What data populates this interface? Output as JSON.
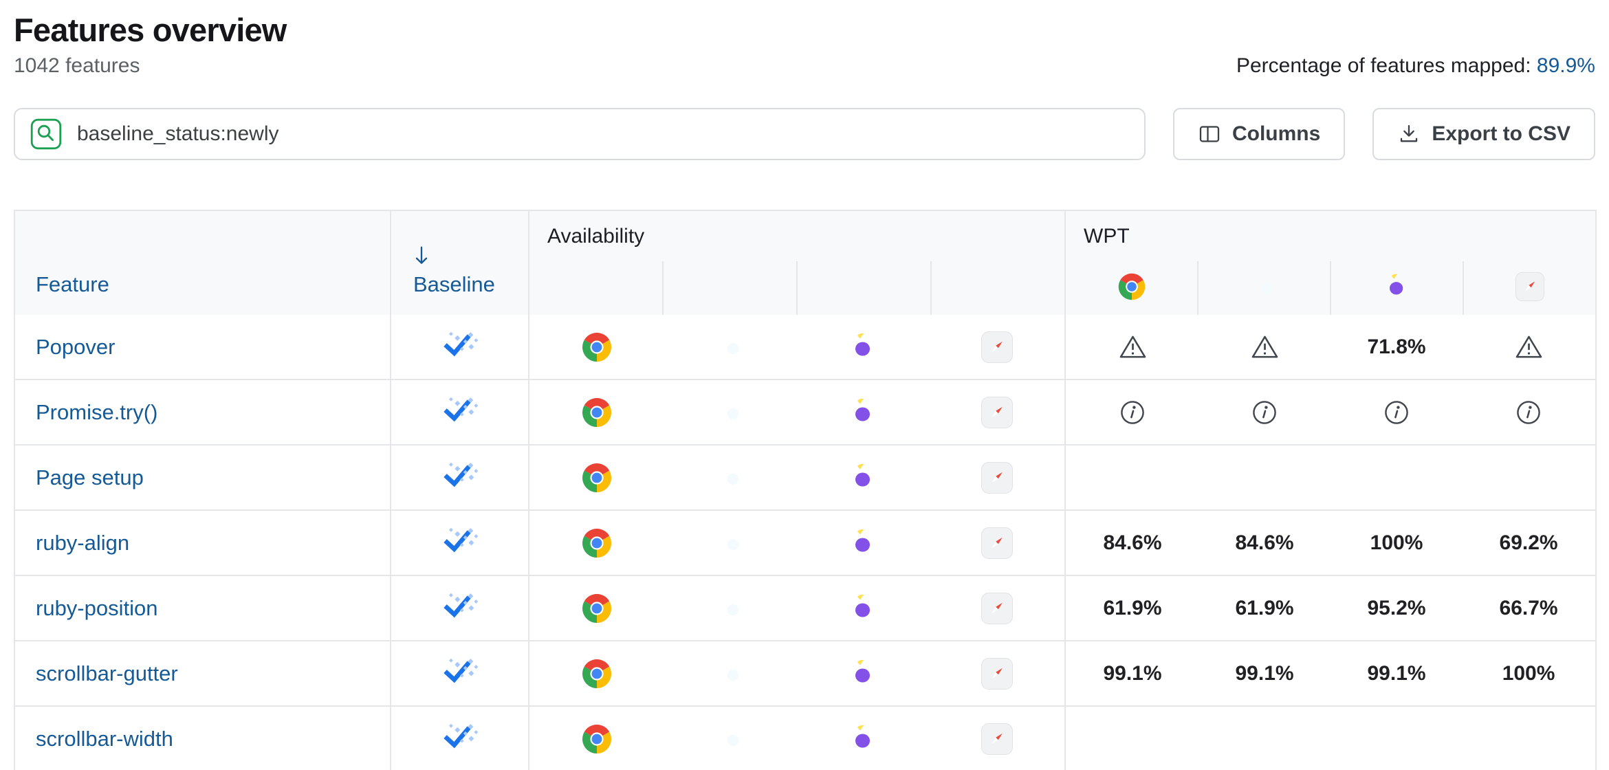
{
  "header": {
    "title": "Features overview",
    "subtitle": "1042 features",
    "mapped_label": "Percentage of features mapped:",
    "mapped_value": "89.9%"
  },
  "toolbar": {
    "search_value": "baseline_status:newly",
    "search_icon": "search-icon",
    "columns_label": "Columns",
    "columns_icon": "columns-icon",
    "export_label": "Export to CSV",
    "export_icon": "download-icon"
  },
  "table": {
    "columns": {
      "feature_label": "Feature",
      "baseline_label": "Baseline",
      "baseline_sort_icon": "arrow-down-icon",
      "baseline_sort": "descending",
      "availability_label": "Availability",
      "wpt_label": "WPT",
      "wpt_browsers": [
        "chrome",
        "edge",
        "firefox",
        "safari"
      ]
    },
    "rows": [
      {
        "feature": "Popover",
        "baseline": "newly-available",
        "availability": [
          "chrome",
          "edge",
          "firefox",
          "safari"
        ],
        "wpt": [
          {
            "icon": "warning"
          },
          {
            "icon": "warning"
          },
          {
            "value": "71.8%"
          },
          {
            "icon": "warning"
          }
        ]
      },
      {
        "feature": "Promise.try()",
        "baseline": "newly-available",
        "availability": [
          "chrome",
          "edge",
          "firefox",
          "safari"
        ],
        "wpt": [
          {
            "icon": "info"
          },
          {
            "icon": "info"
          },
          {
            "icon": "info"
          },
          {
            "icon": "info"
          }
        ]
      },
      {
        "feature": "Page setup",
        "baseline": "newly-available",
        "availability": [
          "chrome",
          "edge",
          "firefox",
          "safari"
        ],
        "wpt": [
          {},
          {},
          {},
          {}
        ]
      },
      {
        "feature": "ruby-align",
        "baseline": "newly-available",
        "availability": [
          "chrome",
          "edge",
          "firefox",
          "safari"
        ],
        "wpt": [
          {
            "value": "84.6%"
          },
          {
            "value": "84.6%"
          },
          {
            "value": "100%"
          },
          {
            "value": "69.2%"
          }
        ]
      },
      {
        "feature": "ruby-position",
        "baseline": "newly-available",
        "availability": [
          "chrome",
          "edge",
          "firefox",
          "safari"
        ],
        "wpt": [
          {
            "value": "61.9%"
          },
          {
            "value": "61.9%"
          },
          {
            "value": "95.2%"
          },
          {
            "value": "66.7%"
          }
        ]
      },
      {
        "feature": "scrollbar-gutter",
        "baseline": "newly-available",
        "availability": [
          "chrome",
          "edge",
          "firefox",
          "safari"
        ],
        "wpt": [
          {
            "value": "99.1%"
          },
          {
            "value": "99.1%"
          },
          {
            "value": "99.1%"
          },
          {
            "value": "100%"
          }
        ]
      },
      {
        "feature": "scrollbar-width",
        "baseline": "newly-available",
        "availability": [
          "chrome",
          "edge",
          "firefox",
          "safari"
        ],
        "wpt": [
          {},
          {},
          {},
          {}
        ]
      }
    ]
  },
  "colors": {
    "link_blue": "#155a96",
    "accent_green": "#1ba052",
    "baseline_check_blue": "#1a73e8",
    "baseline_sparkle_blue": "#a6c8fa",
    "icon_gray": "#40454d",
    "header_background": "#f8f9fa",
    "table_border": "#e4e6e9"
  }
}
